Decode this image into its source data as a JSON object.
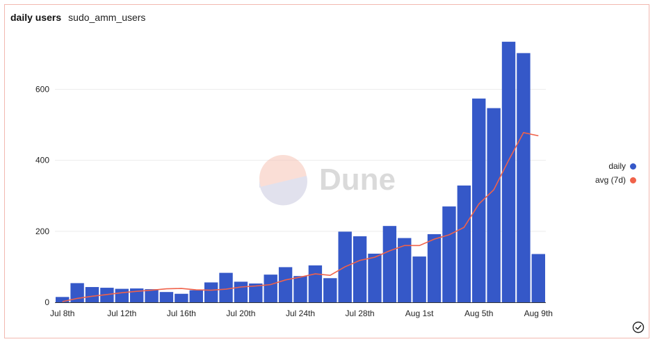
{
  "header": {
    "title": "daily users",
    "subtitle": "sudo_amm_users"
  },
  "watermark": {
    "text": "Dune"
  },
  "legend": [
    {
      "label": "daily",
      "color": "#3558c8"
    },
    {
      "label": "avg (7d)",
      "color": "#f0624a"
    }
  ],
  "icons": {
    "status": "check-circle-icon"
  },
  "chart_data": {
    "type": "bar",
    "x": [
      "Jul 8th",
      "Jul 9th",
      "Jul 10th",
      "Jul 11th",
      "Jul 12th",
      "Jul 13th",
      "Jul 14th",
      "Jul 15th",
      "Jul 16th",
      "Jul 17th",
      "Jul 18th",
      "Jul 19th",
      "Jul 20th",
      "Jul 21st",
      "Jul 22nd",
      "Jul 23rd",
      "Jul 24th",
      "Jul 25th",
      "Jul 26th",
      "Jul 27th",
      "Jul 28th",
      "Jul 29th",
      "Jul 30th",
      "Jul 31st",
      "Aug 1st",
      "Aug 2nd",
      "Aug 3rd",
      "Aug 4th",
      "Aug 5th",
      "Aug 6th",
      "Aug 7th",
      "Aug 8th",
      "Aug 9th"
    ],
    "xticks": [
      "Jul 8th",
      "Jul 12th",
      "Jul 16th",
      "Jul 20th",
      "Jul 24th",
      "Jul 28th",
      "Aug 1st",
      "Aug 5th",
      "Aug 9th"
    ],
    "ylim": [
      0,
      740
    ],
    "yticks": [
      0,
      200,
      400,
      600
    ],
    "grid": true,
    "legend_position": "right",
    "series": [
      {
        "name": "daily",
        "type": "bar",
        "values": [
          15,
          54,
          43,
          41,
          38,
          39,
          37,
          29,
          24,
          34,
          56,
          83,
          58,
          53,
          78,
          99,
          74,
          104,
          68,
          199,
          186,
          137,
          215,
          181,
          129,
          192,
          270,
          329,
          574,
          547,
          734,
          702,
          136
        ]
      },
      {
        "name": "avg (7d)",
        "type": "line",
        "values": [
          2,
          11,
          17,
          22,
          27,
          31,
          34,
          38,
          39,
          35,
          34,
          37,
          43,
          46,
          50,
          63,
          71,
          80,
          76,
          100,
          118,
          127,
          145,
          160,
          160,
          178,
          190,
          211,
          277,
          317,
          400,
          478,
          469
        ]
      }
    ]
  }
}
